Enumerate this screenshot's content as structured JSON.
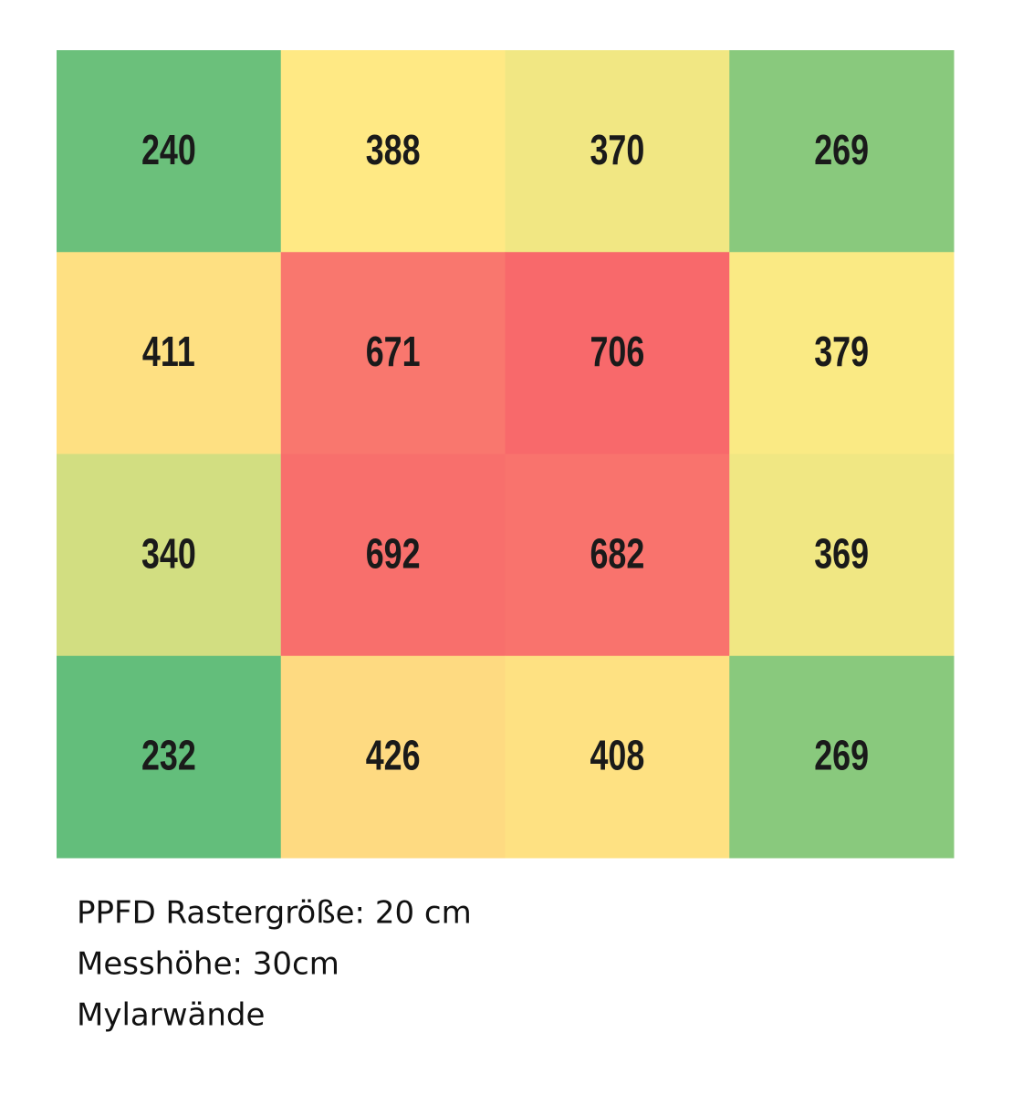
{
  "chart_data": {
    "type": "heatmap",
    "values": [
      [
        240,
        388,
        370,
        269
      ],
      [
        411,
        671,
        706,
        379
      ],
      [
        340,
        692,
        682,
        369
      ],
      [
        232,
        426,
        408,
        269
      ]
    ],
    "colorscale": [
      "#63be7b",
      "#ffeb84",
      "#f8696b"
    ],
    "caption": [
      "PPFD Rastergröße: 20 cm",
      "Messhöhe: 30cm",
      "Mylarwände"
    ]
  }
}
